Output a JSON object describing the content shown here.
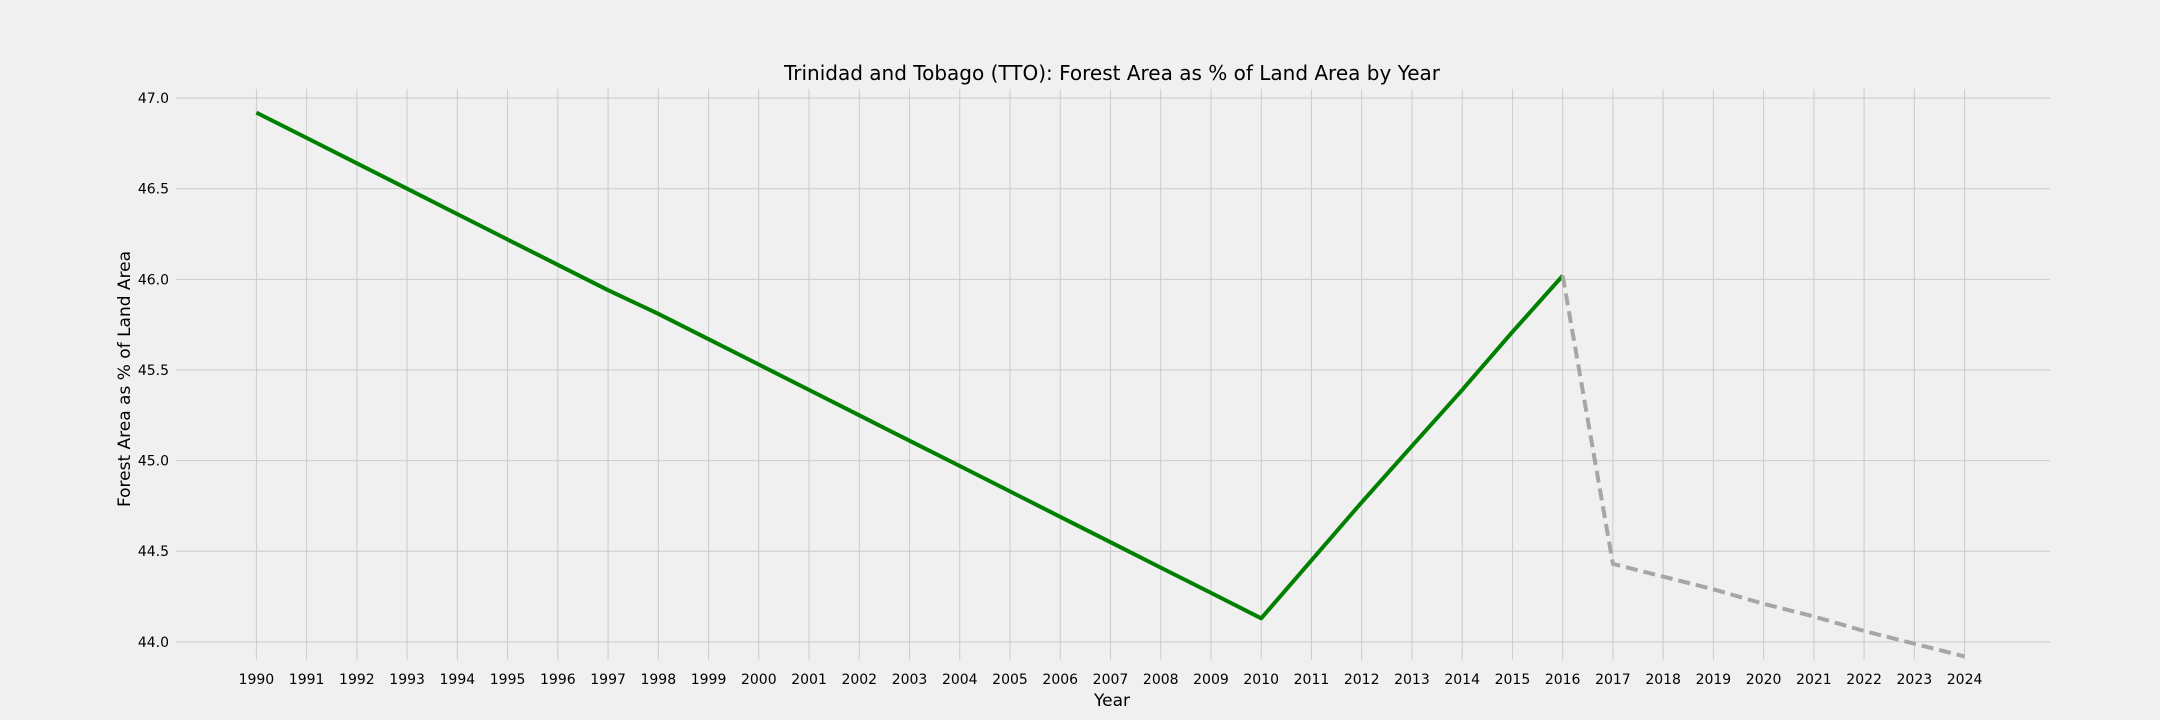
{
  "chart_data": {
    "type": "line",
    "title": "Trinidad and Tobago (TTO): Forest Area as % of Land Area by Year",
    "xlabel": "Year",
    "ylabel": "Forest Area as % of Land Area",
    "xlim": [
      1988.4,
      2025.7
    ],
    "ylim": [
      43.9,
      47.05
    ],
    "x_ticks": [
      1990,
      1991,
      1992,
      1993,
      1994,
      1995,
      1996,
      1997,
      1998,
      1999,
      2000,
      2001,
      2002,
      2003,
      2004,
      2005,
      2006,
      2007,
      2008,
      2009,
      2010,
      2011,
      2012,
      2013,
      2014,
      2015,
      2016,
      2017,
      2018,
      2019,
      2020,
      2021,
      2022,
      2023,
      2024
    ],
    "y_ticks": [
      44.0,
      44.5,
      45.0,
      45.5,
      46.0,
      46.5,
      47.0
    ],
    "grid": true,
    "series": [
      {
        "style": "solid",
        "color": "#008000",
        "x": [
          1990,
          1991,
          1992,
          1993,
          1994,
          1995,
          1996,
          1997,
          1998,
          1999,
          2000,
          2001,
          2002,
          2003,
          2004,
          2005,
          2006,
          2007,
          2008,
          2009,
          2010,
          2011,
          2012,
          2013,
          2014,
          2015,
          2016
        ],
        "y": [
          46.92,
          46.78,
          46.64,
          46.5,
          46.36,
          46.22,
          46.08,
          45.94,
          45.81,
          45.67,
          45.53,
          45.39,
          45.25,
          45.11,
          44.97,
          44.83,
          44.69,
          44.55,
          44.41,
          44.27,
          44.13,
          44.45,
          44.77,
          45.08,
          45.39,
          45.71,
          46.02
        ]
      },
      {
        "style": "dashed",
        "color": "#a6a6a6",
        "x": [
          2016,
          2017,
          2018,
          2019,
          2020,
          2021,
          2022,
          2023,
          2024
        ],
        "y": [
          46.02,
          44.43,
          44.36,
          44.29,
          44.21,
          44.14,
          44.06,
          43.99,
          43.92
        ]
      }
    ]
  }
}
